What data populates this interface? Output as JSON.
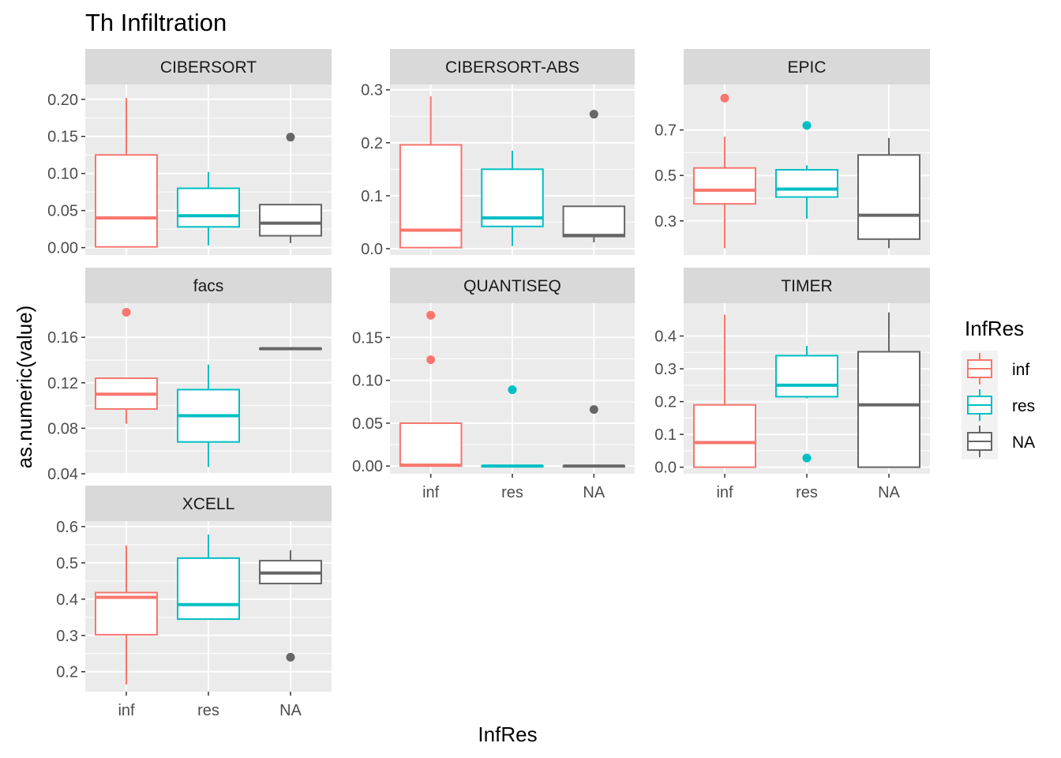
{
  "chart_data": {
    "type": "boxplot",
    "title": "Th Infiltration",
    "xlabel": "InfRes",
    "ylabel": "as.numeric(value)",
    "categories": [
      "inf",
      "res",
      "NA"
    ],
    "legend": {
      "title": "InfRes",
      "position": "right",
      "entries": [
        {
          "label": "inf",
          "color": "#F8766D"
        },
        {
          "label": "res",
          "color": "#00BFC4"
        },
        {
          "label": "NA",
          "color": "#666666"
        }
      ]
    },
    "colors": {
      "inf": "#F8766D",
      "res": "#00BFC4",
      "NA": "#666666"
    },
    "grid": true,
    "panels": [
      {
        "name": "CIBERSORT",
        "ylim": [
          -0.01,
          0.22
        ],
        "yticks": [
          0.0,
          0.05,
          0.1,
          0.15,
          0.2
        ],
        "ytick_labels": [
          "0.00",
          "0.05",
          "0.10",
          "0.15",
          "0.20"
        ],
        "show_x_labels": false,
        "boxes": [
          {
            "category": "inf",
            "whisker_low": 0.0,
            "q1": 0.001,
            "median": 0.04,
            "q3": 0.125,
            "whisker_high": 0.202,
            "outliers": []
          },
          {
            "category": "res",
            "whisker_low": 0.003,
            "q1": 0.028,
            "median": 0.043,
            "q3": 0.08,
            "whisker_high": 0.102,
            "outliers": []
          },
          {
            "category": "NA",
            "whisker_low": 0.006,
            "q1": 0.016,
            "median": 0.033,
            "q3": 0.058,
            "whisker_high": 0.058,
            "outliers": [
              0.149
            ]
          }
        ]
      },
      {
        "name": "CIBERSORT-ABS",
        "ylim": [
          -0.012,
          0.31
        ],
        "yticks": [
          0.0,
          0.1,
          0.2,
          0.3
        ],
        "ytick_labels": [
          "0.0",
          "0.1",
          "0.2",
          "0.3"
        ],
        "show_x_labels": false,
        "boxes": [
          {
            "category": "inf",
            "whisker_low": 0.002,
            "q1": 0.002,
            "median": 0.035,
            "q3": 0.196,
            "whisker_high": 0.288,
            "outliers": []
          },
          {
            "category": "res",
            "whisker_low": 0.005,
            "q1": 0.042,
            "median": 0.058,
            "q3": 0.15,
            "whisker_high": 0.185,
            "outliers": []
          },
          {
            "category": "NA",
            "whisker_low": 0.012,
            "q1": 0.023,
            "median": 0.025,
            "q3": 0.08,
            "whisker_high": 0.08,
            "outliers": [
              0.254
            ]
          }
        ]
      },
      {
        "name": "EPIC",
        "ylim": [
          0.15,
          0.9
        ],
        "yticks": [
          0.3,
          0.5,
          0.7
        ],
        "ytick_labels": [
          "0.3",
          "0.5",
          "0.7"
        ],
        "show_x_labels": false,
        "boxes": [
          {
            "category": "inf",
            "whisker_low": 0.18,
            "q1": 0.375,
            "median": 0.435,
            "q3": 0.533,
            "whisker_high": 0.67,
            "outliers": [
              0.84
            ]
          },
          {
            "category": "res",
            "whisker_low": 0.31,
            "q1": 0.405,
            "median": 0.44,
            "q3": 0.525,
            "whisker_high": 0.545,
            "outliers": [
              0.72
            ]
          },
          {
            "category": "NA",
            "whisker_low": 0.18,
            "q1": 0.22,
            "median": 0.325,
            "q3": 0.59,
            "whisker_high": 0.665,
            "outliers": []
          }
        ]
      },
      {
        "name": "facs",
        "ylim": [
          0.04,
          0.19
        ],
        "yticks": [
          0.04,
          0.08,
          0.12,
          0.16
        ],
        "ytick_labels": [
          "0.04",
          "0.08",
          "0.12",
          "0.16"
        ],
        "show_x_labels": false,
        "boxes": [
          {
            "category": "inf",
            "whisker_low": 0.084,
            "q1": 0.097,
            "median": 0.11,
            "q3": 0.124,
            "whisker_high": 0.124,
            "outliers": [
              0.182
            ]
          },
          {
            "category": "res",
            "whisker_low": 0.046,
            "q1": 0.068,
            "median": 0.091,
            "q3": 0.114,
            "whisker_high": 0.136,
            "outliers": []
          },
          {
            "category": "NA",
            "whisker_low": 0.15,
            "q1": 0.15,
            "median": 0.15,
            "q3": 0.15,
            "whisker_high": 0.15,
            "outliers": []
          }
        ]
      },
      {
        "name": "QUANTISEQ",
        "ylim": [
          -0.009,
          0.19
        ],
        "yticks": [
          0.0,
          0.05,
          0.1,
          0.15
        ],
        "ytick_labels": [
          "0.00",
          "0.05",
          "0.10",
          "0.15"
        ],
        "show_x_labels": true,
        "boxes": [
          {
            "category": "inf",
            "whisker_low": 0.0,
            "q1": 0.0,
            "median": 0.001,
            "q3": 0.05,
            "whisker_high": 0.05,
            "outliers": [
              0.124,
              0.176
            ]
          },
          {
            "category": "res",
            "whisker_low": 0.0,
            "q1": 0.0,
            "median": 0.0,
            "q3": 0.0,
            "whisker_high": 0.0,
            "outliers": [
              0.089
            ]
          },
          {
            "category": "NA",
            "whisker_low": 0.0,
            "q1": 0.0,
            "median": 0.0,
            "q3": 0.0,
            "whisker_high": 0.0,
            "outliers": [
              0.066
            ]
          }
        ]
      },
      {
        "name": "TIMER",
        "ylim": [
          -0.02,
          0.5
        ],
        "yticks": [
          0.0,
          0.1,
          0.2,
          0.3,
          0.4
        ],
        "ytick_labels": [
          "0.0",
          "0.1",
          "0.2",
          "0.3",
          "0.4"
        ],
        "show_x_labels": true,
        "boxes": [
          {
            "category": "inf",
            "whisker_low": 0.0,
            "q1": 0.0,
            "median": 0.075,
            "q3": 0.19,
            "whisker_high": 0.465,
            "outliers": []
          },
          {
            "category": "res",
            "whisker_low": 0.21,
            "q1": 0.215,
            "median": 0.25,
            "q3": 0.34,
            "whisker_high": 0.37,
            "outliers": [
              0.028
            ]
          },
          {
            "category": "NA",
            "whisker_low": 0.0,
            "q1": 0.0,
            "median": 0.19,
            "q3": 0.352,
            "whisker_high": 0.472,
            "outliers": []
          }
        ]
      },
      {
        "name": "XCELL",
        "ylim": [
          0.145,
          0.615
        ],
        "yticks": [
          0.2,
          0.3,
          0.4,
          0.5,
          0.6
        ],
        "ytick_labels": [
          "0.2",
          "0.3",
          "0.4",
          "0.5",
          "0.6"
        ],
        "show_x_labels": true,
        "boxes": [
          {
            "category": "inf",
            "whisker_low": 0.165,
            "q1": 0.302,
            "median": 0.405,
            "q3": 0.418,
            "whisker_high": 0.548,
            "outliers": []
          },
          {
            "category": "res",
            "whisker_low": 0.345,
            "q1": 0.345,
            "median": 0.385,
            "q3": 0.513,
            "whisker_high": 0.578,
            "outliers": []
          },
          {
            "category": "NA",
            "whisker_low": 0.443,
            "q1": 0.443,
            "median": 0.472,
            "q3": 0.506,
            "whisker_high": 0.535,
            "outliers": [
              0.24
            ]
          }
        ]
      }
    ]
  }
}
